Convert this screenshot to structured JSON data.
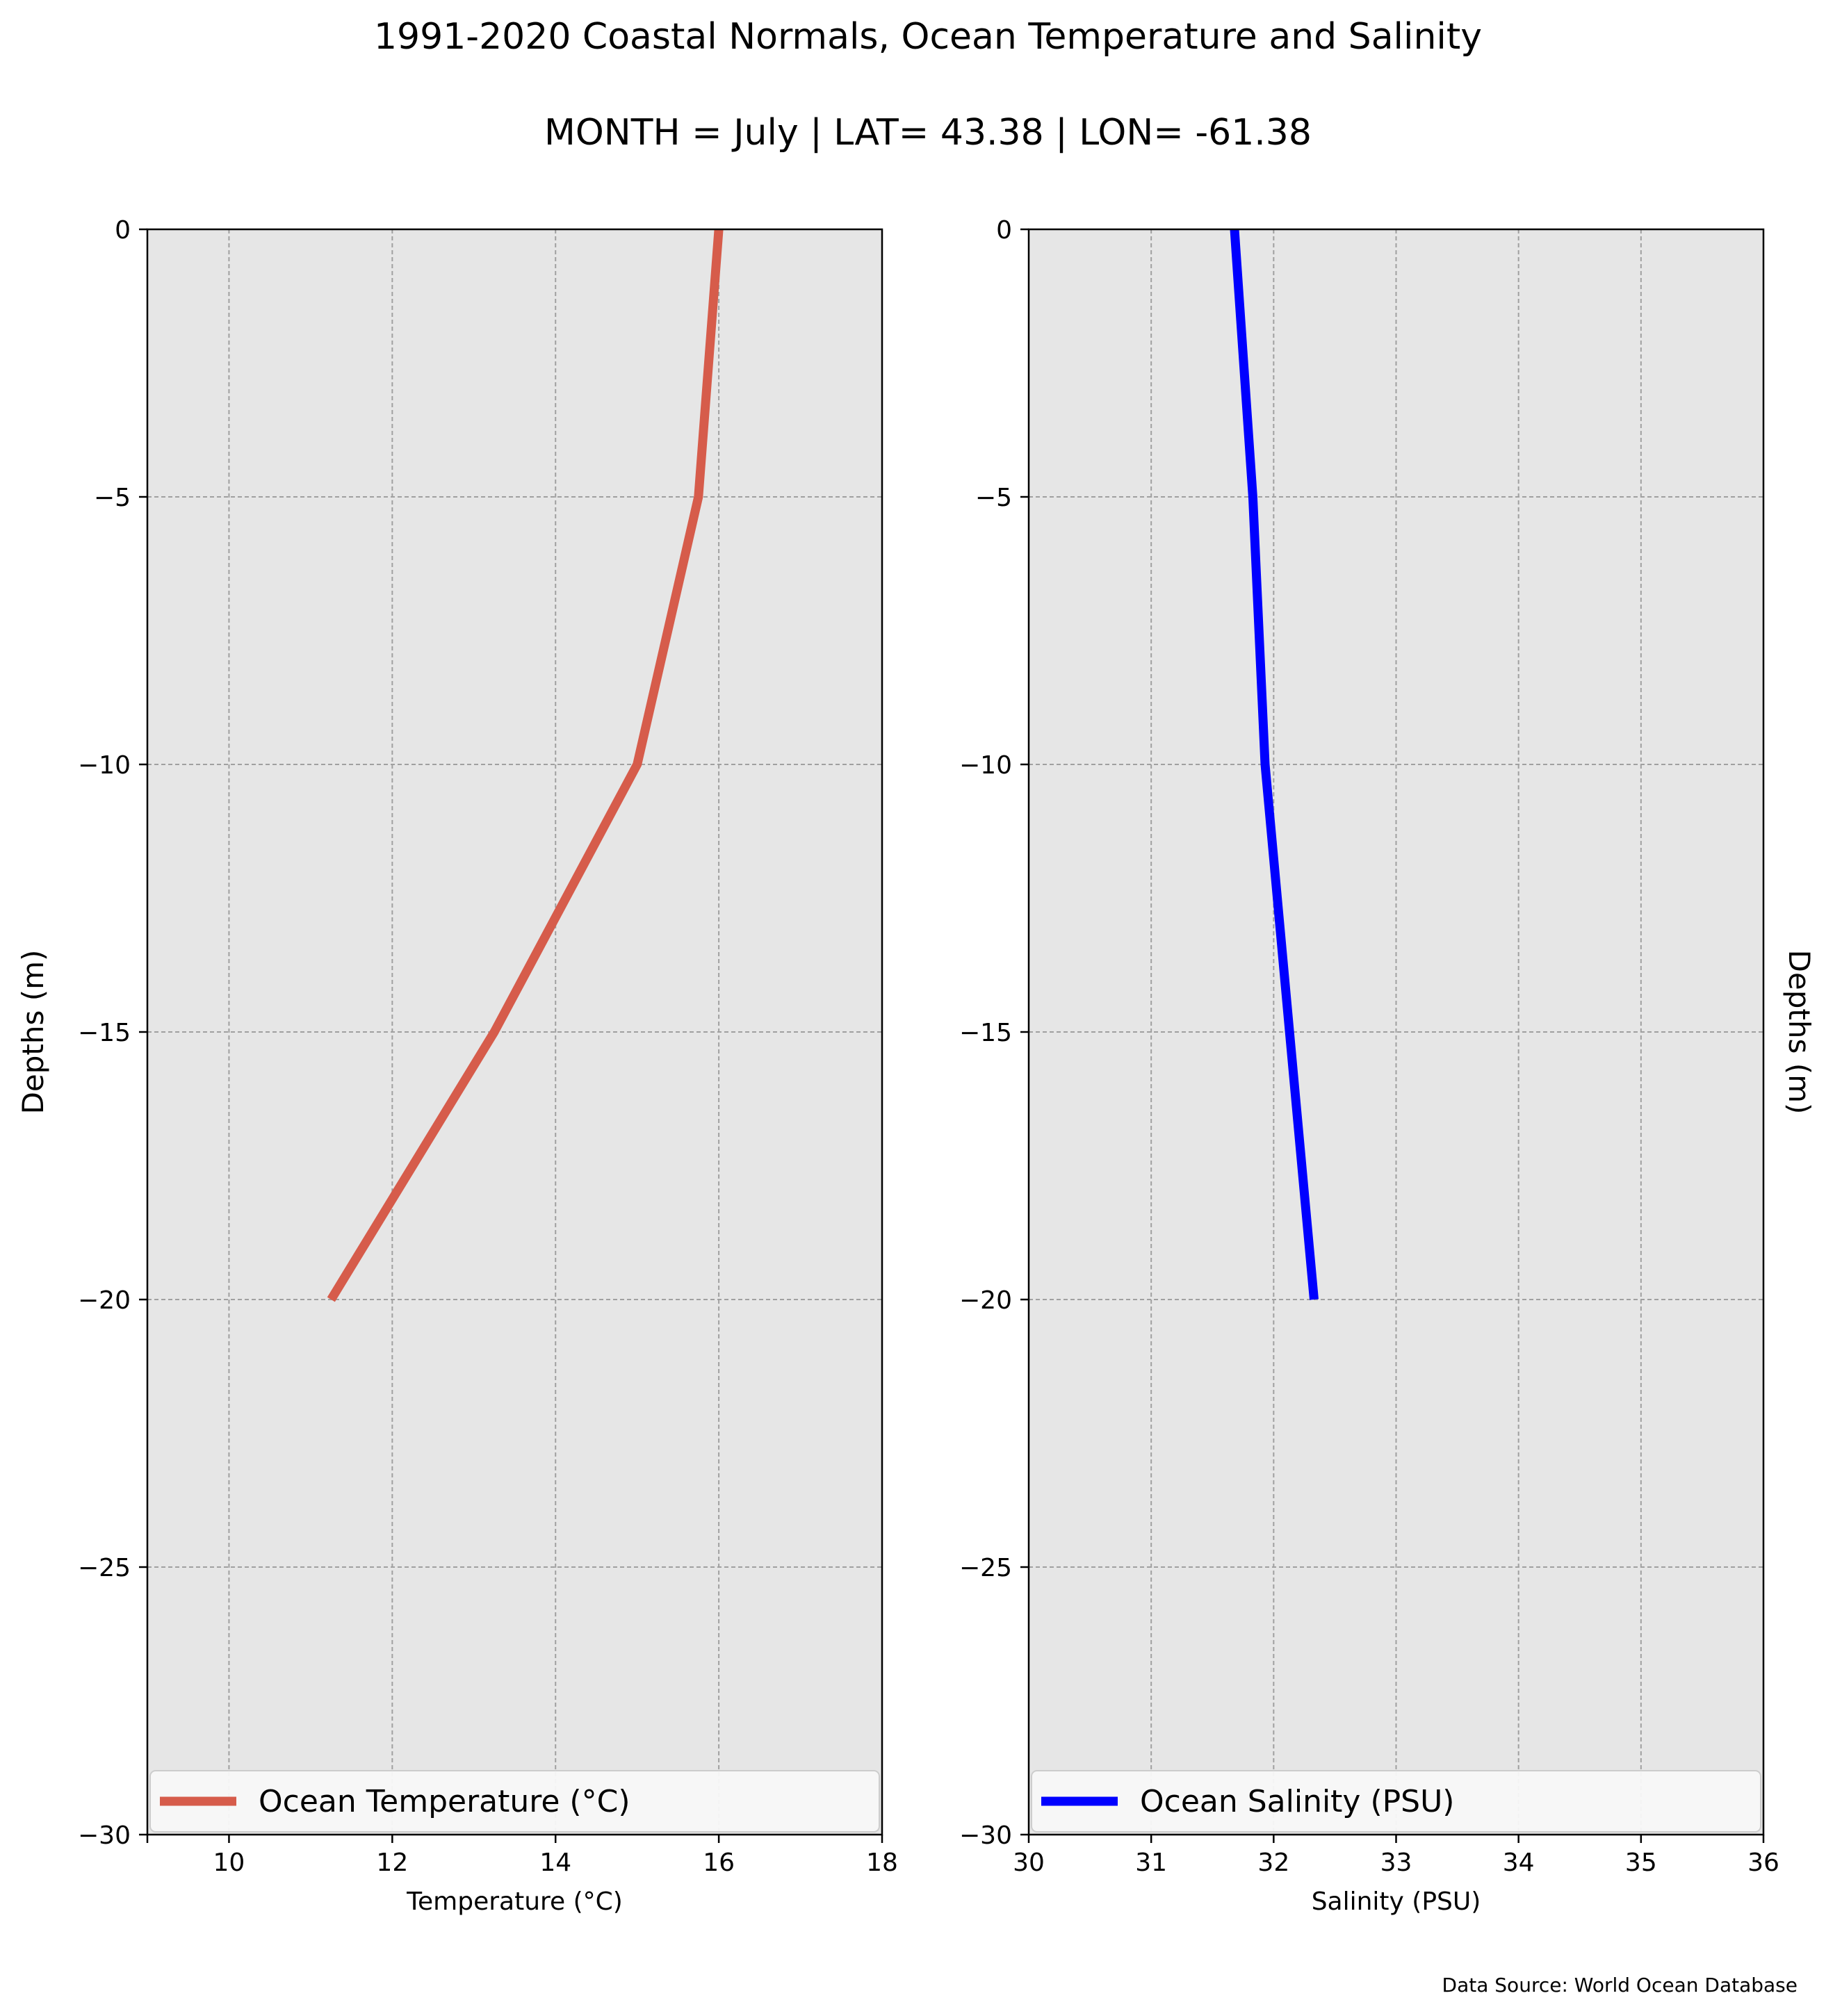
{
  "title": "1991-2020 Coastal Normals, Ocean Temperature and Salinity",
  "subtitle": "MONTH = July | LAT= 43.38 | LON= -61.38",
  "source_note": "Data Source: World Ocean Database",
  "colors": {
    "background": "#ffffff",
    "plot_bg": "#e6e6e6",
    "grid": "#a0a0a0",
    "temperature": "#d65c4b",
    "salinity": "#0000ff"
  },
  "chart_data": [
    {
      "type": "line",
      "title": "",
      "xlabel": "Temperature (°C)",
      "ylabel": "Depths (m)",
      "xlim": [
        9,
        18
      ],
      "ylim": [
        -30,
        0
      ],
      "xticks": [
        10,
        12,
        14,
        16,
        18
      ],
      "xtick_labels": [
        "10",
        "12",
        "14",
        "16",
        "18"
      ],
      "yticks": [
        0,
        -5,
        -10,
        -15,
        -20,
        -25,
        -30
      ],
      "ytick_labels": [
        "0",
        "−5",
        "−10",
        "−15",
        "−20",
        "−25",
        "−30"
      ],
      "grid": true,
      "legend_position": "bottom",
      "series": [
        {
          "name": "Ocean Temperature (°C)",
          "x": [
            16.0,
            15.75,
            15.0,
            13.25,
            11.25
          ],
          "y": [
            0,
            -5,
            -10,
            -15,
            -20
          ]
        }
      ]
    },
    {
      "type": "line",
      "title": "",
      "xlabel": "Salinity (PSU)",
      "ylabel": "Depths (m)",
      "xlim": [
        30,
        36
      ],
      "ylim": [
        -30,
        0
      ],
      "xticks": [
        30,
        31,
        32,
        33,
        34,
        35,
        36
      ],
      "xtick_labels": [
        "30",
        "31",
        "32",
        "33",
        "34",
        "35",
        "36"
      ],
      "yticks": [
        0,
        -5,
        -10,
        -15,
        -20,
        -25,
        -30
      ],
      "ytick_labels": [
        "0",
        "−5",
        "−10",
        "−15",
        "−20",
        "−25",
        "−30"
      ],
      "ylabel_side": "right",
      "grid": true,
      "legend_position": "bottom",
      "series": [
        {
          "name": "Ocean Salinity (PSU)",
          "x": [
            31.68,
            31.83,
            31.93,
            32.13,
            32.33
          ],
          "y": [
            0,
            -5,
            -10,
            -15,
            -20
          ]
        }
      ]
    }
  ]
}
